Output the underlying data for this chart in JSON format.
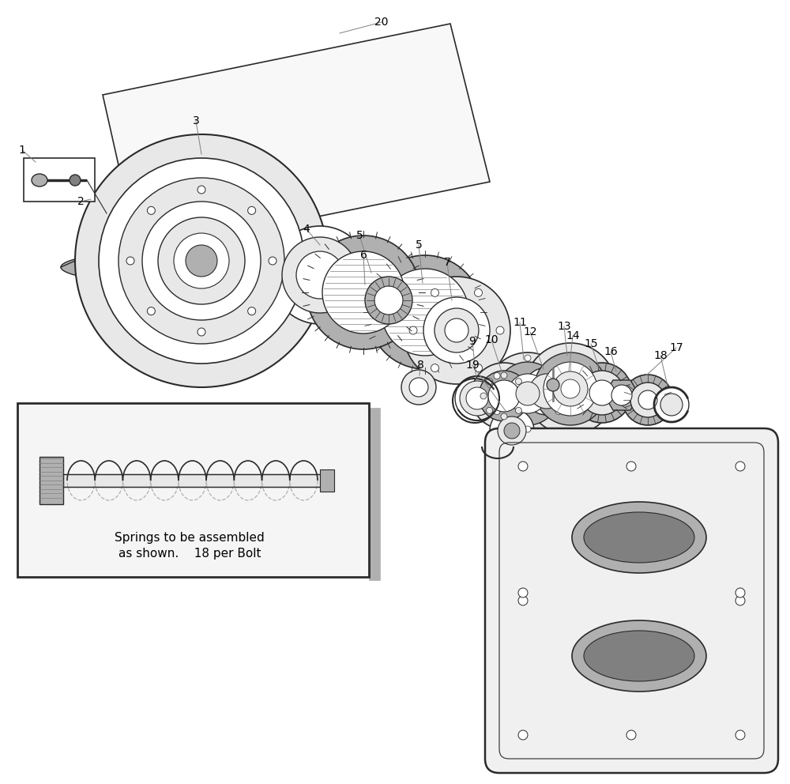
{
  "background_color": "#ffffff",
  "line_color": "#2a2a2a",
  "gray_light": "#d8d8d8",
  "gray_medium": "#b0b0b0",
  "gray_dark": "#808080",
  "gray_fill": "#e8e8e8",
  "hatch_gray": "#a0a0a0",
  "spring_text_line1": "Springs to be assembled",
  "spring_text_line2": "as shown.    18 per Bolt"
}
